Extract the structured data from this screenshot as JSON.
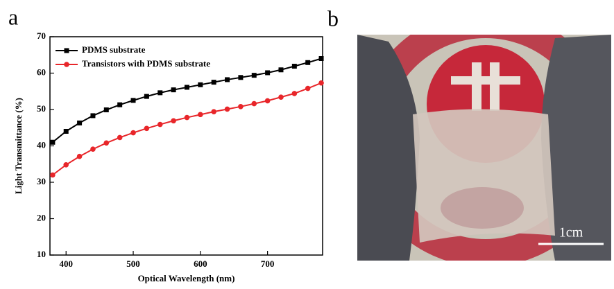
{
  "chart_data": {
    "type": "line",
    "panel_labels": [
      "a",
      "b"
    ],
    "x_label": "Optical Wavelength (nm)",
    "y_label": "Light Transmittance (%)",
    "x": [
      380,
      400,
      420,
      440,
      460,
      480,
      500,
      520,
      540,
      560,
      580,
      600,
      620,
      640,
      660,
      680,
      700,
      720,
      740,
      760,
      780
    ],
    "series": [
      {
        "name": "PDMS substrate",
        "color": "#000000",
        "marker": "square",
        "values": [
          41,
          44,
          46.3,
          48.3,
          49.9,
          51.3,
          52.5,
          53.6,
          54.6,
          55.4,
          56.1,
          56.8,
          57.5,
          58.2,
          58.8,
          59.4,
          60.1,
          60.9,
          61.9,
          62.9,
          64
        ]
      },
      {
        "name": "Transistors with PDMS substrate",
        "color": "#e8262a",
        "marker": "circle",
        "values": [
          32,
          34.8,
          37.1,
          39.1,
          40.8,
          42.3,
          43.6,
          44.8,
          45.9,
          46.9,
          47.8,
          48.6,
          49.4,
          50.1,
          50.8,
          51.6,
          52.4,
          53.4,
          54.4,
          55.8,
          57.3
        ]
      }
    ],
    "xlim": [
      376,
      782
    ],
    "xticks": [
      400,
      500,
      600,
      700
    ],
    "ylim": [
      10,
      70
    ],
    "yticks": [
      10,
      20,
      30,
      40,
      50,
      60,
      70
    ],
    "legend": "upper left",
    "photo_scale_label": "1cm"
  }
}
